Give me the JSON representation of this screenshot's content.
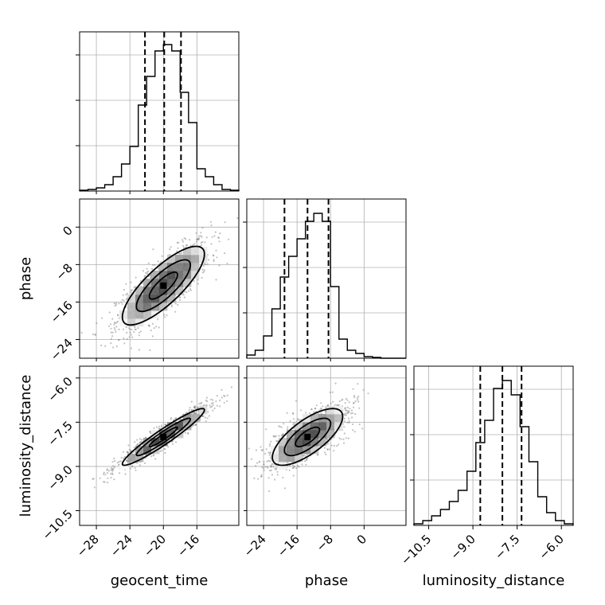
{
  "chart_data": {
    "type": "corner",
    "parameters": [
      "geocent_time",
      "phase",
      "luminosity_distance"
    ],
    "quantile_lines": {
      "geocent_time": [
        -22.2,
        -19.9,
        -17.9
      ],
      "phase": [
        -19.0,
        -13.5,
        -8.5
      ],
      "luminosity_distance": [
        -8.75,
        -8.0,
        -7.35
      ]
    },
    "histograms": {
      "geocent_time": {
        "range": [
          -30.0,
          -11.0
        ],
        "ylim": [
          0,
          1
        ],
        "bin_edges": [
          -30.0,
          -29.0,
          -28.0,
          -27.0,
          -26.0,
          -25.0,
          -24.0,
          -23.0,
          -22.0,
          -21.0,
          -20.0,
          -19.0,
          -18.0,
          -17.0,
          -16.0,
          -15.0,
          -14.0,
          -13.0,
          -12.0,
          -11.0
        ],
        "counts": [
          0.005,
          0.01,
          0.02,
          0.04,
          0.09,
          0.17,
          0.28,
          0.54,
          0.72,
          0.88,
          0.92,
          0.88,
          0.62,
          0.43,
          0.14,
          0.09,
          0.04,
          0.01,
          0.005
        ]
      },
      "phase": {
        "range": [
          -28.0,
          10.0
        ],
        "ylim": [
          0,
          1
        ],
        "bin_edges": [
          -28.0,
          -26.0,
          -24.0,
          -22.0,
          -20.0,
          -18.0,
          -16.0,
          -14.0,
          -12.0,
          -10.0,
          -8.0,
          -6.0,
          -4.0,
          -2.0,
          0.0,
          2.0,
          4.0,
          6.0,
          8.0,
          10.0
        ],
        "counts": [
          0.02,
          0.05,
          0.14,
          0.31,
          0.51,
          0.64,
          0.75,
          0.86,
          0.91,
          0.86,
          0.45,
          0.12,
          0.05,
          0.03,
          0.01,
          0.005,
          0.0,
          0.0,
          0.0
        ]
      },
      "luminosity_distance": {
        "range": [
          -11.0,
          -5.6
        ],
        "ylim": [
          0,
          1
        ],
        "bin_edges": [
          -11.0,
          -10.7,
          -10.4,
          -10.1,
          -9.8,
          -9.5,
          -9.2,
          -8.9,
          -8.6,
          -8.3,
          -8.0,
          -7.7,
          -7.4,
          -7.1,
          -6.8,
          -6.5,
          -6.2,
          -5.9,
          -5.6
        ],
        "counts": [
          0.01,
          0.03,
          0.06,
          0.1,
          0.15,
          0.22,
          0.34,
          0.52,
          0.66,
          0.86,
          0.91,
          0.82,
          0.62,
          0.4,
          0.18,
          0.08,
          0.03,
          0.01
        ]
      }
    },
    "panels": [
      {
        "x": "geocent_time",
        "y": "phase",
        "xlim": [
          -30.0,
          -11.0
        ],
        "ylim": [
          -28.0,
          6.0
        ],
        "center": [
          -20.0,
          -12.5
        ]
      },
      {
        "x": "geocent_time",
        "y": "luminosity_distance",
        "xlim": [
          -30.0,
          -11.0
        ],
        "ylim": [
          -11.0,
          -5.6
        ],
        "center": [
          -20.0,
          -8.0
        ]
      },
      {
        "x": "phase",
        "y": "luminosity_distance",
        "xlim": [
          -28.0,
          10.0
        ],
        "ylim": [
          -11.0,
          -5.6
        ],
        "center": [
          -13.5,
          -8.0
        ]
      }
    ],
    "ticks": {
      "geocent_time": [
        "−28",
        "−24",
        "−20",
        "−16"
      ],
      "phase": [
        "−24",
        "−16",
        "−8",
        "0"
      ],
      "luminosity_distance": [
        "−10.5",
        "−9.0",
        "−7.5",
        "−6.0"
      ]
    },
    "tick_values": {
      "geocent_time": [
        -28,
        -24,
        -20,
        -16
      ],
      "phase": [
        -24,
        -16,
        -8,
        0
      ],
      "luminosity_distance": [
        -10.5,
        -9.0,
        -7.5,
        -6.0
      ]
    },
    "xlabels": [
      "geocent_time",
      "phase",
      "luminosity_distance"
    ],
    "ylabels": [
      "phase",
      "luminosity_distance"
    ],
    "grid": true
  }
}
